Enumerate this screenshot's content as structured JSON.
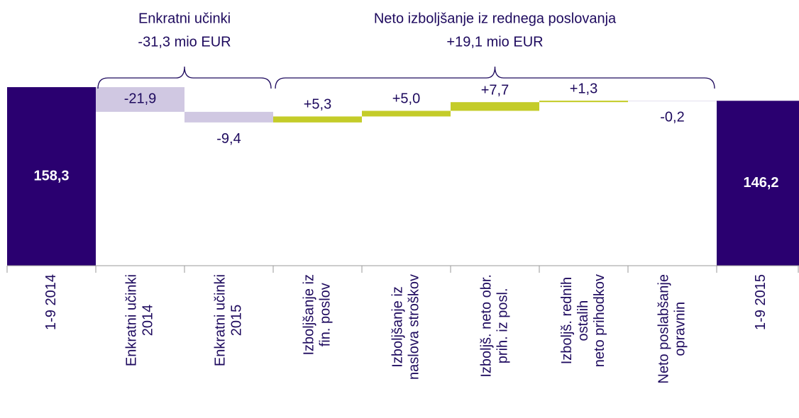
{
  "chart_data": {
    "type": "waterfall",
    "categories": [
      [
        "1-9 2014"
      ],
      [
        "Enkratni učinki",
        "2014"
      ],
      [
        "Enkratni učinki",
        "2015"
      ],
      [
        "Izboljšanje iz",
        "fin. poslov"
      ],
      [
        "Izboljšanje iz",
        "naslova stroškov"
      ],
      [
        "Izboljš. neto obr.",
        "prih. iz posl."
      ],
      [
        "Izboljš. rednih",
        "ostalih",
        "neto prihodkov"
      ],
      [
        "Neto poslabšanje",
        "opravnin"
      ],
      [
        "1-9 2015"
      ]
    ],
    "values": [
      158.3,
      -21.9,
      -9.4,
      5.3,
      5.0,
      7.7,
      1.3,
      -0.2,
      146.2
    ],
    "value_labels": [
      "158,3",
      "-21,9",
      "-9,4",
      "+5,3",
      "+5,0",
      "+7,7",
      "+1,3",
      "-0,2",
      "146,2"
    ],
    "totals": [
      true,
      false,
      false,
      false,
      false,
      false,
      false,
      false,
      true
    ],
    "colors": [
      "#2a0070",
      "#d0c8e2",
      "#d0c8e2",
      "#c4cc29",
      "#c4cc29",
      "#c4cc29",
      "#c4cc29",
      "#e4dfee",
      "#2a0070"
    ],
    "annotations": [
      [
        "Enkratni učinki",
        "-31,3 mio EUR"
      ],
      [
        "Neto izboljšanje iz rednega poslovanja",
        "+19,1 mio EUR"
      ]
    ]
  }
}
